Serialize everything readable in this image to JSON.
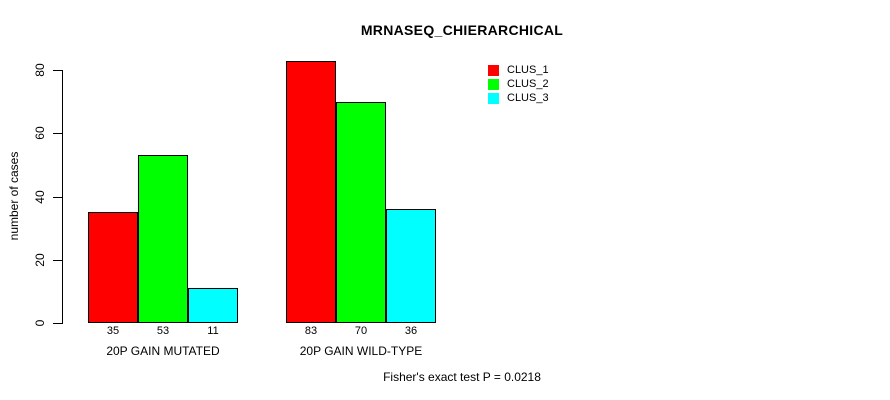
{
  "chart_data": {
    "type": "bar",
    "title": "MRNASEQ_CHIERARCHICAL",
    "ylabel": "number of cases",
    "xlabel": "",
    "categories": [
      "20P GAIN MUTATED",
      "20P GAIN WILD-TYPE"
    ],
    "series": [
      {
        "name": "CLUS_1",
        "color": "#FF0000",
        "values": [
          35,
          83
        ]
      },
      {
        "name": "CLUS_2",
        "color": "#00FF00",
        "values": [
          53,
          70
        ]
      },
      {
        "name": "CLUS_3",
        "color": "#00FFFF",
        "values": [
          11,
          36
        ]
      }
    ],
    "yticks": [
      0,
      20,
      40,
      60,
      80
    ],
    "ylim": [
      0,
      85
    ],
    "grid": false,
    "legend_position": "top-right",
    "bar_border_color": "#000000",
    "bar_value_labels": [
      [
        35,
        53,
        11
      ],
      [
        83,
        70,
        36
      ]
    ],
    "footnote": "Fisher's exact test P = 0.0218"
  }
}
